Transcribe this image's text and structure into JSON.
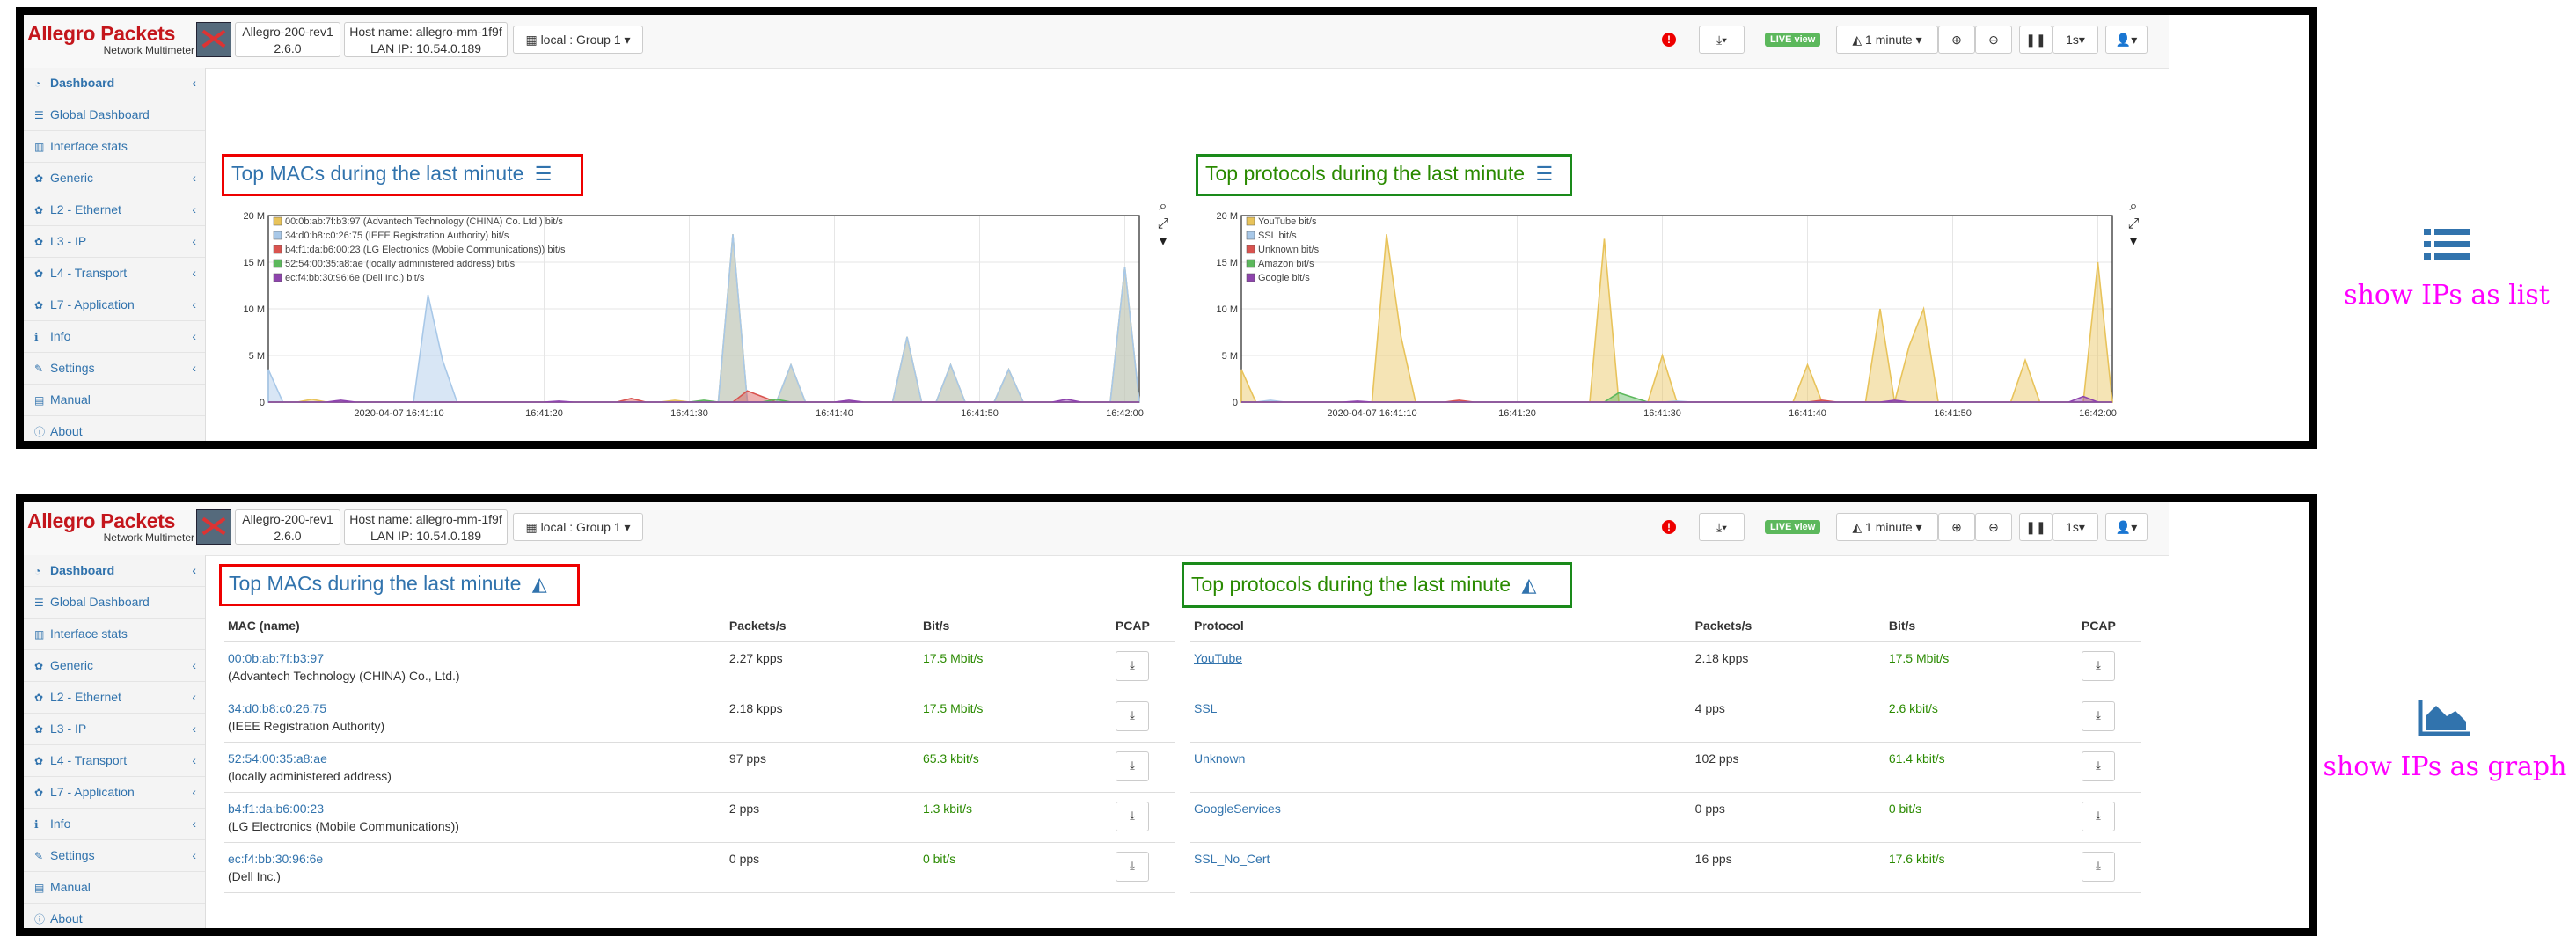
{
  "header": {
    "logo_line1": "Allegro Packets",
    "logo_line2": "Network Multimeter",
    "device_name": "Allegro-200-rev1",
    "device_version": "2.6.0",
    "hostname": "Host name: allegro-mm-1f9f",
    "lan_ip": "LAN IP: 10.54.0.189",
    "group": "local : Group 1",
    "alert_mark": "!",
    "live_badge": "LIVE view",
    "time_window": "1 minute",
    "refresh": "1s"
  },
  "sidebar": {
    "items": [
      {
        "label": "Dashboard",
        "icon": "tachometer-icon",
        "glyph": "◔"
      },
      {
        "label": "Global Dashboard",
        "icon": "list-icon",
        "glyph": "☰"
      },
      {
        "label": "Interface stats",
        "icon": "bar-chart-icon",
        "glyph": "▥"
      },
      {
        "label": "Generic",
        "icon": "gear-icon",
        "glyph": "✿"
      },
      {
        "label": "L2 - Ethernet",
        "icon": "gear-icon",
        "glyph": "✿"
      },
      {
        "label": "L3 - IP",
        "icon": "gear-icon",
        "glyph": "✿"
      },
      {
        "label": "L4 - Transport",
        "icon": "gear-icon",
        "glyph": "✿"
      },
      {
        "label": "L7 - Application",
        "icon": "gear-icon",
        "glyph": "✿"
      },
      {
        "label": "Info",
        "icon": "info-icon",
        "glyph": "ℹ"
      },
      {
        "label": "Settings",
        "icon": "wrench-icon",
        "glyph": "✎"
      },
      {
        "label": "Manual",
        "icon": "book-icon",
        "glyph": "▤"
      },
      {
        "label": "About",
        "icon": "info-circle-icon",
        "glyph": "ⓘ"
      }
    ]
  },
  "top_panel": {
    "macs_title": "Top MACs during the last minute",
    "protocols_title": "Top protocols during the last minute"
  },
  "bottom_panel": {
    "macs_title": "Top MACs during the last minute",
    "protocols_title": "Top protocols during the last minute"
  },
  "chart_data": [
    {
      "type": "area",
      "title": "Top MACs during the last minute",
      "x_ticks": [
        "2020-04-07 16:41:10",
        "16:41:20",
        "16:41:30",
        "16:41:40",
        "16:41:50",
        "16:42:00"
      ],
      "y_ticks": [
        "0",
        "5 M",
        "10 M",
        "15 M",
        "20 M"
      ],
      "ylim": [
        0,
        20000000
      ],
      "legend_position": "top-left",
      "series": [
        {
          "name": "00:0b:ab:7f:b3:97 (Advantech Technology (CHINA) Co. Ltd.) bit/s",
          "color": "#e8c35a",
          "peaks": [
            [
              3,
              0.3
            ],
            [
              28,
              0.2
            ],
            [
              32,
              18.0
            ],
            [
              36,
              4.0
            ],
            [
              44,
              7.0
            ],
            [
              47,
              4.0
            ],
            [
              51,
              3.5
            ],
            [
              59,
              14.5
            ]
          ]
        },
        {
          "name": "34:d0:b8:c0:26:75 (IEEE Registration Authority) bit/s",
          "color": "#a8c8e8",
          "peaks": [
            [
              0,
              3.5
            ],
            [
              11,
              11.5
            ],
            [
              12,
              4.5
            ],
            [
              32,
              18.0
            ],
            [
              36,
              4.0
            ],
            [
              44,
              7.0
            ],
            [
              47,
              4.0
            ],
            [
              51,
              3.5
            ],
            [
              59,
              14.5
            ]
          ]
        },
        {
          "name": "b4:f1:da:b6:00:23 (LG Electronics (Mobile Communications)) bit/s",
          "color": "#d9534f",
          "peaks": [
            [
              25,
              0.4
            ],
            [
              33,
              1.2
            ],
            [
              34,
              0.6
            ]
          ]
        },
        {
          "name": "52:54:00:35:a8:ae (locally administered address) bit/s",
          "color": "#5cb85c",
          "peaks": [
            [
              30,
              0.2
            ],
            [
              35,
              0.3
            ]
          ]
        },
        {
          "name": "ec:f4:bb:30:96:6e (Dell Inc.) bit/s",
          "color": "#8e44ad",
          "peaks": [
            [
              5,
              0.2
            ],
            [
              20,
              0.1
            ],
            [
              40,
              0.2
            ],
            [
              55,
              0.3
            ]
          ]
        }
      ]
    },
    {
      "type": "area",
      "title": "Top protocols during the last minute",
      "x_ticks": [
        "2020-04-07 16:41:10",
        "16:41:20",
        "16:41:30",
        "16:41:40",
        "16:41:50",
        "16:42:00"
      ],
      "y_ticks": [
        "0",
        "5 M",
        "10 M",
        "15 M",
        "20 M"
      ],
      "ylim": [
        0,
        20000000
      ],
      "legend_position": "top-left",
      "series": [
        {
          "name": "YouTube bit/s",
          "color": "#e8c35a",
          "peaks": [
            [
              0,
              3.5
            ],
            [
              10,
              18.0
            ],
            [
              11,
              7.0
            ],
            [
              25,
              17.5
            ],
            [
              29,
              5.0
            ],
            [
              39,
              4.0
            ],
            [
              44,
              10.0
            ],
            [
              46,
              6.0
            ],
            [
              47,
              10.0
            ],
            [
              54,
              4.5
            ],
            [
              59,
              15.0
            ]
          ]
        },
        {
          "name": "SSL bit/s",
          "color": "#a8c8e8",
          "peaks": [
            [
              2,
              0.2
            ],
            [
              30,
              0.1
            ]
          ]
        },
        {
          "name": "Unknown bit/s",
          "color": "#d9534f",
          "peaks": [
            [
              15,
              0.2
            ],
            [
              40,
              0.2
            ]
          ]
        },
        {
          "name": "Amazon bit/s",
          "color": "#5cb85c",
          "peaks": [
            [
              26,
              1.0
            ],
            [
              27,
              0.5
            ]
          ]
        },
        {
          "name": "Google bit/s",
          "color": "#8e44ad",
          "peaks": [
            [
              8,
              0.1
            ],
            [
              45,
              0.2
            ],
            [
              58,
              0.6
            ]
          ]
        }
      ]
    },
    {
      "type": "table",
      "title": "Top MACs during the last minute",
      "columns": [
        "MAC (name)",
        "Packets/s",
        "Bit/s",
        "PCAP"
      ],
      "rows": [
        {
          "mac": "00:0b:ab:7f:b3:97",
          "name": "(Advantech Technology (CHINA) Co., Ltd.)",
          "pps": "2.27 kpps",
          "bps": "17.5 Mbit/s"
        },
        {
          "mac": "34:d0:b8:c0:26:75",
          "name": "(IEEE Registration Authority)",
          "pps": "2.18 kpps",
          "bps": "17.5 Mbit/s"
        },
        {
          "mac": "52:54:00:35:a8:ae",
          "name": "(locally administered address)",
          "pps": "97 pps",
          "bps": "65.3 kbit/s"
        },
        {
          "mac": "b4:f1:da:b6:00:23",
          "name": "(LG Electronics (Mobile Communications))",
          "pps": "2 pps",
          "bps": "1.3 kbit/s"
        },
        {
          "mac": "ec:f4:bb:30:96:6e",
          "name": "(Dell Inc.)",
          "pps": "0 pps",
          "bps": "0 bit/s"
        }
      ]
    },
    {
      "type": "table",
      "title": "Top protocols during the last minute",
      "columns": [
        "Protocol",
        "Packets/s",
        "Bit/s",
        "PCAP"
      ],
      "rows": [
        {
          "protocol": "YouTube",
          "pps": "2.18 kpps",
          "bps": "17.5 Mbit/s"
        },
        {
          "protocol": "SSL",
          "pps": "4 pps",
          "bps": "2.6 kbit/s"
        },
        {
          "protocol": "Unknown",
          "pps": "102 pps",
          "bps": "61.4 kbit/s"
        },
        {
          "protocol": "GoogleServices",
          "pps": "0 pps",
          "bps": "0 bit/s"
        },
        {
          "protocol": "SSL_No_Cert",
          "pps": "16 pps",
          "bps": "17.6 kbit/s"
        }
      ]
    }
  ],
  "annotations": {
    "list_caption": "show IPs as list",
    "graph_caption": "show IPs as graph",
    "accent_color": "#ff00ff",
    "icon_color": "#3173ad"
  }
}
